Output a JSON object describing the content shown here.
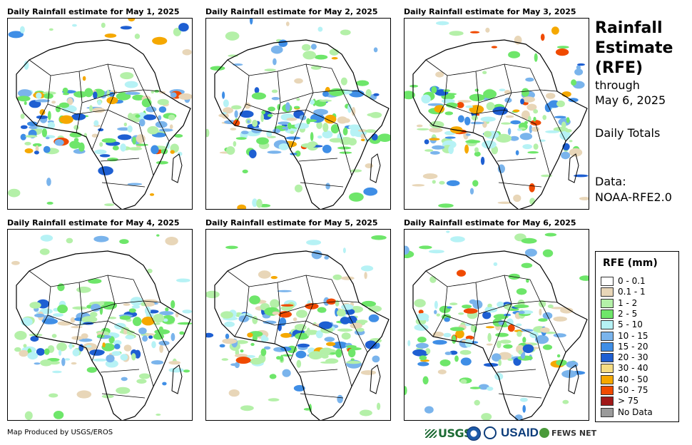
{
  "panels": [
    {
      "title": "Daily Rainfall estimate for May 1, 2025"
    },
    {
      "title": "Daily Rainfall estimate for May 2, 2025"
    },
    {
      "title": "Daily Rainfall estimate for May 3, 2025"
    },
    {
      "title": "Daily Rainfall estimate for May 4, 2025"
    },
    {
      "title": "Daily Rainfall estimate for May 5, 2025"
    },
    {
      "title": "Daily Rainfall estimate for May 6, 2025"
    }
  ],
  "side": {
    "title_line1": "Rainfall",
    "title_line2": "Estimate",
    "title_line3": "(RFE)",
    "through": "through",
    "date": "May 6, 2025",
    "totals": "Daily Totals",
    "data_label": "Data:",
    "data_source": "NOAA-RFE2.0"
  },
  "legend": {
    "title": "RFE (mm)",
    "items": [
      {
        "label": "0 - 0.1",
        "color": "#ffffff"
      },
      {
        "label": "0.1 - 1",
        "color": "#e8d6b8"
      },
      {
        "label": "1 - 2",
        "color": "#b4f0a8"
      },
      {
        "label": "2 - 5",
        "color": "#6ee66a"
      },
      {
        "label": "5 - 10",
        "color": "#b6f2f5"
      },
      {
        "label": "10 - 15",
        "color": "#7ab4ec"
      },
      {
        "label": "15 - 20",
        "color": "#3f8ee6"
      },
      {
        "label": "20 - 30",
        "color": "#1e5fd2"
      },
      {
        "label": "30 - 40",
        "color": "#f5dc82"
      },
      {
        "label": "40 - 50",
        "color": "#f5a800"
      },
      {
        "label": "50 - 75",
        "color": "#f04a00"
      },
      {
        "label": "> 75",
        "color": "#a01818"
      },
      {
        "label": "No Data",
        "color": "#9a9a9a"
      }
    ]
  },
  "footer": {
    "credit": "Map Produced by USGS/EROS",
    "usgs": "USGS",
    "usaid": "USAID",
    "fewsnet": "FEWS NET"
  }
}
